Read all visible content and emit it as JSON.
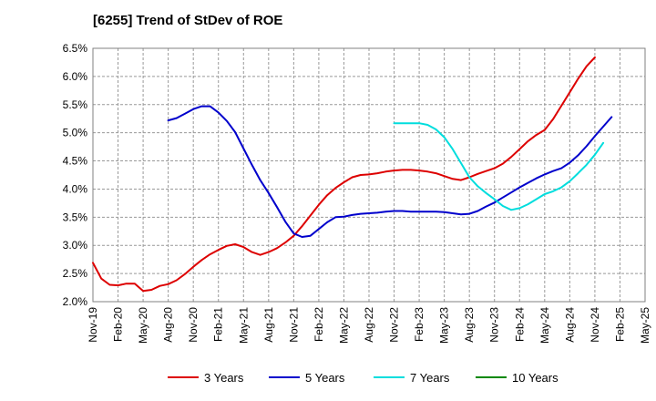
{
  "chart_data": {
    "type": "line",
    "title": "[6255]  Trend of StDev of ROE",
    "xlabel": "",
    "ylabel": "",
    "x_tick_labels": [
      "Nov-19",
      "Feb-20",
      "May-20",
      "Aug-20",
      "Nov-20",
      "Feb-21",
      "May-21",
      "Aug-21",
      "Nov-21",
      "Feb-22",
      "May-22",
      "Aug-22",
      "Nov-22",
      "Feb-23",
      "May-23",
      "Aug-23",
      "Nov-23",
      "Feb-24",
      "May-24",
      "Aug-24",
      "Nov-24",
      "Feb-25",
      "May-25"
    ],
    "y_tick_labels": [
      "2.0%",
      "2.5%",
      "3.0%",
      "3.5%",
      "4.0%",
      "4.5%",
      "5.0%",
      "5.5%",
      "6.0%",
      "6.5%"
    ],
    "y_ticks": [
      2.0,
      2.5,
      3.0,
      3.5,
      4.0,
      4.5,
      5.0,
      5.5,
      6.0,
      6.5
    ],
    "ylim": [
      2.0,
      6.5
    ],
    "xlim_index": [
      0,
      66
    ],
    "grid": true,
    "legend_position": "bottom",
    "series": [
      {
        "name": "3 Years",
        "color": "#dd0000",
        "start_index": 0,
        "values": [
          2.69,
          2.41,
          2.3,
          2.29,
          2.32,
          2.32,
          2.19,
          2.21,
          2.28,
          2.31,
          2.38,
          2.49,
          2.62,
          2.74,
          2.84,
          2.92,
          2.99,
          3.02,
          2.97,
          2.88,
          2.83,
          2.88,
          2.95,
          3.05,
          3.17,
          3.34,
          3.53,
          3.72,
          3.89,
          4.02,
          4.12,
          4.21,
          4.25,
          4.26,
          4.28,
          4.31,
          4.33,
          4.34,
          4.34,
          4.33,
          4.31,
          4.28,
          4.23,
          4.18,
          4.16,
          4.21,
          4.27,
          4.32,
          4.37,
          4.45,
          4.57,
          4.71,
          4.85,
          4.96,
          5.05,
          5.24,
          5.48,
          5.72,
          5.96,
          6.18,
          6.34
        ]
      },
      {
        "name": "5 Years",
        "color": "#0000cc",
        "start_index": 9,
        "values": [
          5.22,
          5.26,
          5.34,
          5.42,
          5.47,
          5.47,
          5.36,
          5.21,
          5.01,
          4.72,
          4.43,
          4.16,
          3.93,
          3.68,
          3.42,
          3.21,
          3.15,
          3.17,
          3.29,
          3.41,
          3.5,
          3.51,
          3.54,
          3.56,
          3.57,
          3.58,
          3.6,
          3.61,
          3.61,
          3.6,
          3.6,
          3.6,
          3.6,
          3.59,
          3.57,
          3.55,
          3.56,
          3.61,
          3.69,
          3.76,
          3.85,
          3.94,
          4.03,
          4.11,
          4.19,
          4.26,
          4.32,
          4.37,
          4.47,
          4.6,
          4.76,
          4.94,
          5.11,
          5.28
        ]
      },
      {
        "name": "7 Years",
        "color": "#00dddd",
        "start_index": 36,
        "values": [
          5.17,
          5.17,
          5.17,
          5.17,
          5.14,
          5.06,
          4.92,
          4.71,
          4.46,
          4.21,
          4.05,
          3.93,
          3.82,
          3.7,
          3.63,
          3.66,
          3.73,
          3.82,
          3.91,
          3.96,
          4.03,
          4.14,
          4.28,
          4.43,
          4.61,
          4.82
        ]
      },
      {
        "name": "10 Years",
        "color": "#008800",
        "start_index": 0,
        "values": []
      }
    ]
  }
}
